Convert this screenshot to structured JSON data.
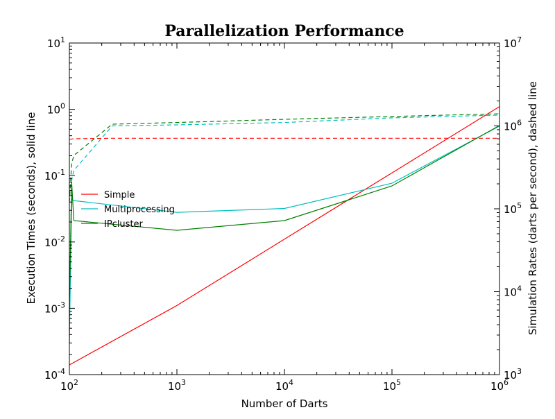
{
  "chart_data": {
    "type": "line",
    "title": "Parallelization Performance",
    "xlabel": "Number of Darts",
    "ylabel_left": "Execution Times (seconds), solid line",
    "ylabel_right": "Simulation Rates (darts per second), dashed line",
    "x_scale": "log",
    "y_left_scale": "log",
    "y_right_scale": "log",
    "xlim": [
      100,
      1000000
    ],
    "ylim_left": [
      0.0001,
      10
    ],
    "ylim_right": [
      1000,
      10000000
    ],
    "x_ticks": [
      {
        "value": 100,
        "base": "10",
        "exp": "2"
      },
      {
        "value": 1000,
        "base": "10",
        "exp": "3"
      },
      {
        "value": 10000,
        "base": "10",
        "exp": "4"
      },
      {
        "value": 100000,
        "base": "10",
        "exp": "5"
      },
      {
        "value": 1000000,
        "base": "10",
        "exp": "6"
      }
    ],
    "y_left_ticks": [
      {
        "value": 0.0001,
        "base": "10",
        "exp": "-4"
      },
      {
        "value": 0.001,
        "base": "10",
        "exp": "-3"
      },
      {
        "value": 0.01,
        "base": "10",
        "exp": "-2"
      },
      {
        "value": 0.1,
        "base": "10",
        "exp": "-1"
      },
      {
        "value": 1,
        "base": "10",
        "exp": "0"
      },
      {
        "value": 10,
        "base": "10",
        "exp": "1"
      }
    ],
    "y_right_ticks": [
      {
        "value": 1000,
        "base": "10",
        "exp": "3"
      },
      {
        "value": 10000,
        "base": "10",
        "exp": "4"
      },
      {
        "value": 100000,
        "base": "10",
        "exp": "5"
      },
      {
        "value": 1000000,
        "base": "10",
        "exp": "6"
      },
      {
        "value": 10000000,
        "base": "10",
        "exp": "7"
      }
    ],
    "grid": false,
    "legend_position": "center-left",
    "legend": [
      "Simple",
      "Multiprocessing",
      "IPcluster"
    ],
    "series": [
      {
        "name": "Simple",
        "color": "#ff0000",
        "times": {
          "x": [
            100,
            1000,
            10000,
            100000,
            1000000
          ],
          "y": [
            0.00014,
            0.0011,
            0.011,
            0.11,
            1.1
          ]
        },
        "rates": {
          "x": [
            100,
            110,
            250,
            1000,
            10000,
            100000,
            1000000
          ],
          "y": [
            690000,
            700000,
            710000,
            710000,
            710000,
            710000,
            710000
          ]
        }
      },
      {
        "name": "Multiprocessing",
        "color": "#00bfbf",
        "times": {
          "x": [
            100,
            105,
            110,
            1000,
            10000,
            100000,
            1000000
          ],
          "y": [
            0.0003,
            0.045,
            0.042,
            0.028,
            0.032,
            0.077,
            0.56
          ]
        },
        "rates": {
          "x": [
            100,
            105,
            110,
            250,
            1000,
            10000,
            100000,
            1000000
          ],
          "y": [
            5500,
            220000,
            290000,
            1000000,
            1030000,
            1100000,
            1250000,
            1350000
          ]
        }
      },
      {
        "name": "IPcluster",
        "color": "#008000",
        "times": {
          "x": [
            100,
            105,
            110,
            1000,
            10000,
            100000,
            1000000
          ],
          "y": [
            0.001,
            0.08,
            0.021,
            0.015,
            0.021,
            0.07,
            0.57
          ]
        },
        "rates": {
          "x": [
            100,
            105,
            110,
            250,
            1000,
            10000,
            100000,
            1000000
          ],
          "y": [
            120000,
            350000,
            440000,
            1050000,
            1100000,
            1200000,
            1300000,
            1400000
          ]
        }
      }
    ]
  }
}
